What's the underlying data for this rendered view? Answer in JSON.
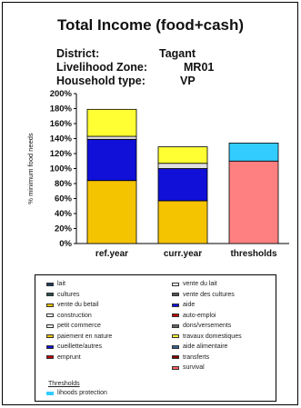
{
  "title": "Total Income (food+cash)",
  "info": {
    "district_label": "District:",
    "district_value": "Tagant",
    "zone_label": "Livelihood Zone:",
    "zone_value": "MR01",
    "household_label": "Household type:",
    "household_value": "VP"
  },
  "chart_data": {
    "type": "bar",
    "stacked": true,
    "ylabel": "% minimum food needs",
    "ylim": [
      0,
      200
    ],
    "yticks": [
      "0%",
      "20%",
      "40%",
      "60%",
      "80%",
      "100%",
      "120%",
      "140%",
      "160%",
      "180%",
      "200%"
    ],
    "categories": [
      "ref.year",
      "curr.year",
      "thresholds"
    ],
    "series": [
      {
        "name": "petit commerce",
        "color": "#f5c400",
        "values": [
          84,
          57,
          0
        ]
      },
      {
        "name": "auto-emploi",
        "color": "#1010d8",
        "values": [
          55,
          43,
          0
        ]
      },
      {
        "name": "construction",
        "color": "#e0e0e0",
        "values": [
          4,
          7,
          0
        ]
      },
      {
        "name": "vente des cultures",
        "color": "#ffff33",
        "values": [
          36,
          22,
          0
        ]
      },
      {
        "name": "survival",
        "color": "#ff8080",
        "values": [
          0,
          0,
          110
        ]
      },
      {
        "name": "livelihoods protection",
        "color": "#33ccff",
        "values": [
          0,
          0,
          24
        ]
      }
    ],
    "grid": false,
    "legend_placement": "bottom"
  },
  "legend": {
    "items": [
      {
        "label": "lait",
        "color": "#1f3a5f"
      },
      {
        "label": "vente du lait",
        "color": "#ffffff"
      },
      {
        "label": "cultures",
        "color": "#2f4f4f"
      },
      {
        "label": "vente des cultures",
        "color": "#555555"
      },
      {
        "label": "vente du betail",
        "color": "#f5c400"
      },
      {
        "label": "aide",
        "color": "#1010d8"
      },
      {
        "label": "construction",
        "color": "#ffffff"
      },
      {
        "label": "auto-emploi",
        "color": "#c00000"
      },
      {
        "label": "petit commerce",
        "color": "#e8e8e8"
      },
      {
        "label": "dons/versements",
        "color": "#666666"
      },
      {
        "label": "paiement en nature",
        "color": "#f5c400"
      },
      {
        "label": "travaux domestiques",
        "color": "#ffff33"
      },
      {
        "label": "cueillette/autres",
        "color": "#1010d8"
      },
      {
        "label": "aide alimentaire",
        "color": "#3a5f8f"
      },
      {
        "label": "emprunt",
        "color": "#c00000"
      },
      {
        "label": "transferts",
        "color": "#800000"
      },
      {
        "label": "",
        "color": ""
      },
      {
        "label": "survival",
        "color": "#ff6060"
      }
    ],
    "thresholds_header": "Thresholds",
    "last_item": {
      "label": "lihoods protection",
      "color": "#33ccff"
    }
  }
}
